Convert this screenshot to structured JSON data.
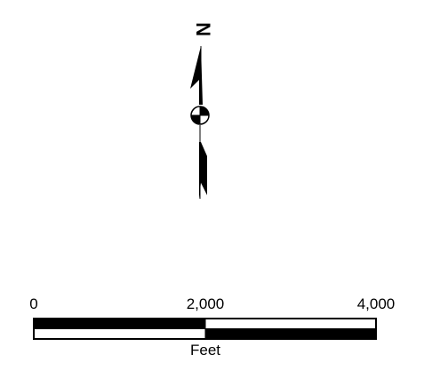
{
  "north_arrow": {
    "label": "N"
  },
  "scale_bar": {
    "tick_labels": [
      "0",
      "2,000",
      "4,000"
    ],
    "unit_label": "Feet"
  },
  "colors": {
    "fill": "#000000",
    "background": "#ffffff"
  }
}
